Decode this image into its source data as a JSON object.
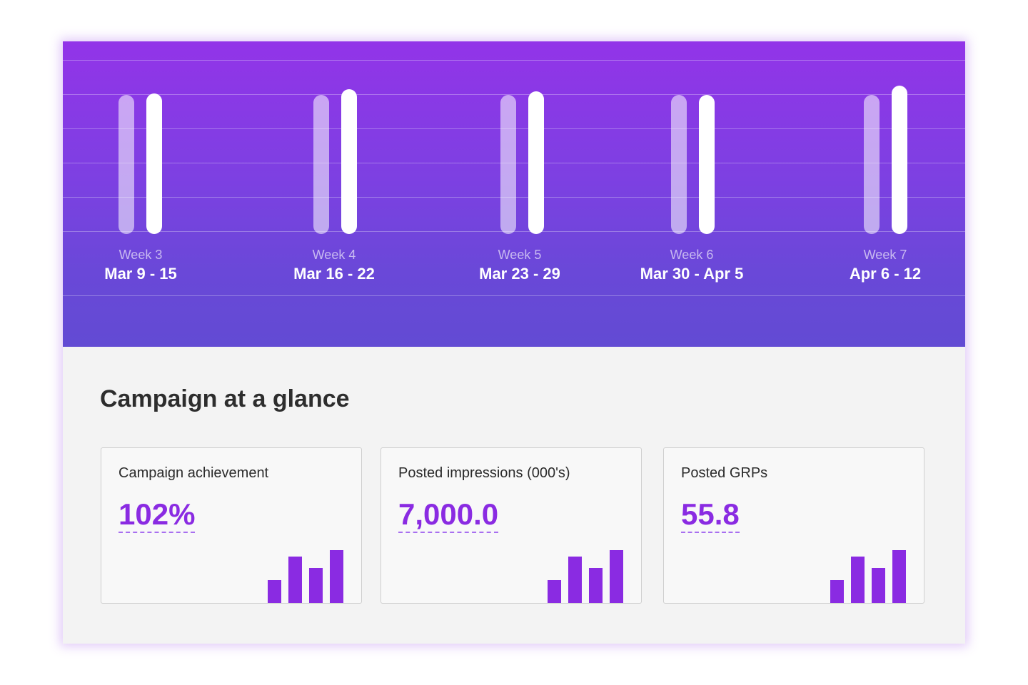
{
  "weekly_chart": {
    "weeks": [
      {
        "label": "Week 3",
        "dates": "Mar 9 - 15"
      },
      {
        "label": "Week 4",
        "dates": "Mar 16 - 22"
      },
      {
        "label": "Week 5",
        "dates": "Mar 23 - 29"
      },
      {
        "label": "Week 6",
        "dates": "Mar 30 - Apr 5"
      },
      {
        "label": "Week 7",
        "dates": "Apr 6 - 12"
      }
    ]
  },
  "summary": {
    "title": "Campaign at a glance",
    "cards": [
      {
        "label": "Campaign achievement",
        "value": "102%"
      },
      {
        "label": "Posted impressions (000's)",
        "value": "7,000.0"
      },
      {
        "label": "Posted GRPs",
        "value": "55.8"
      }
    ]
  },
  "colors": {
    "accent": "#8a2be2",
    "hero_top": "#9234e8",
    "hero_bottom": "#624bd3"
  }
}
